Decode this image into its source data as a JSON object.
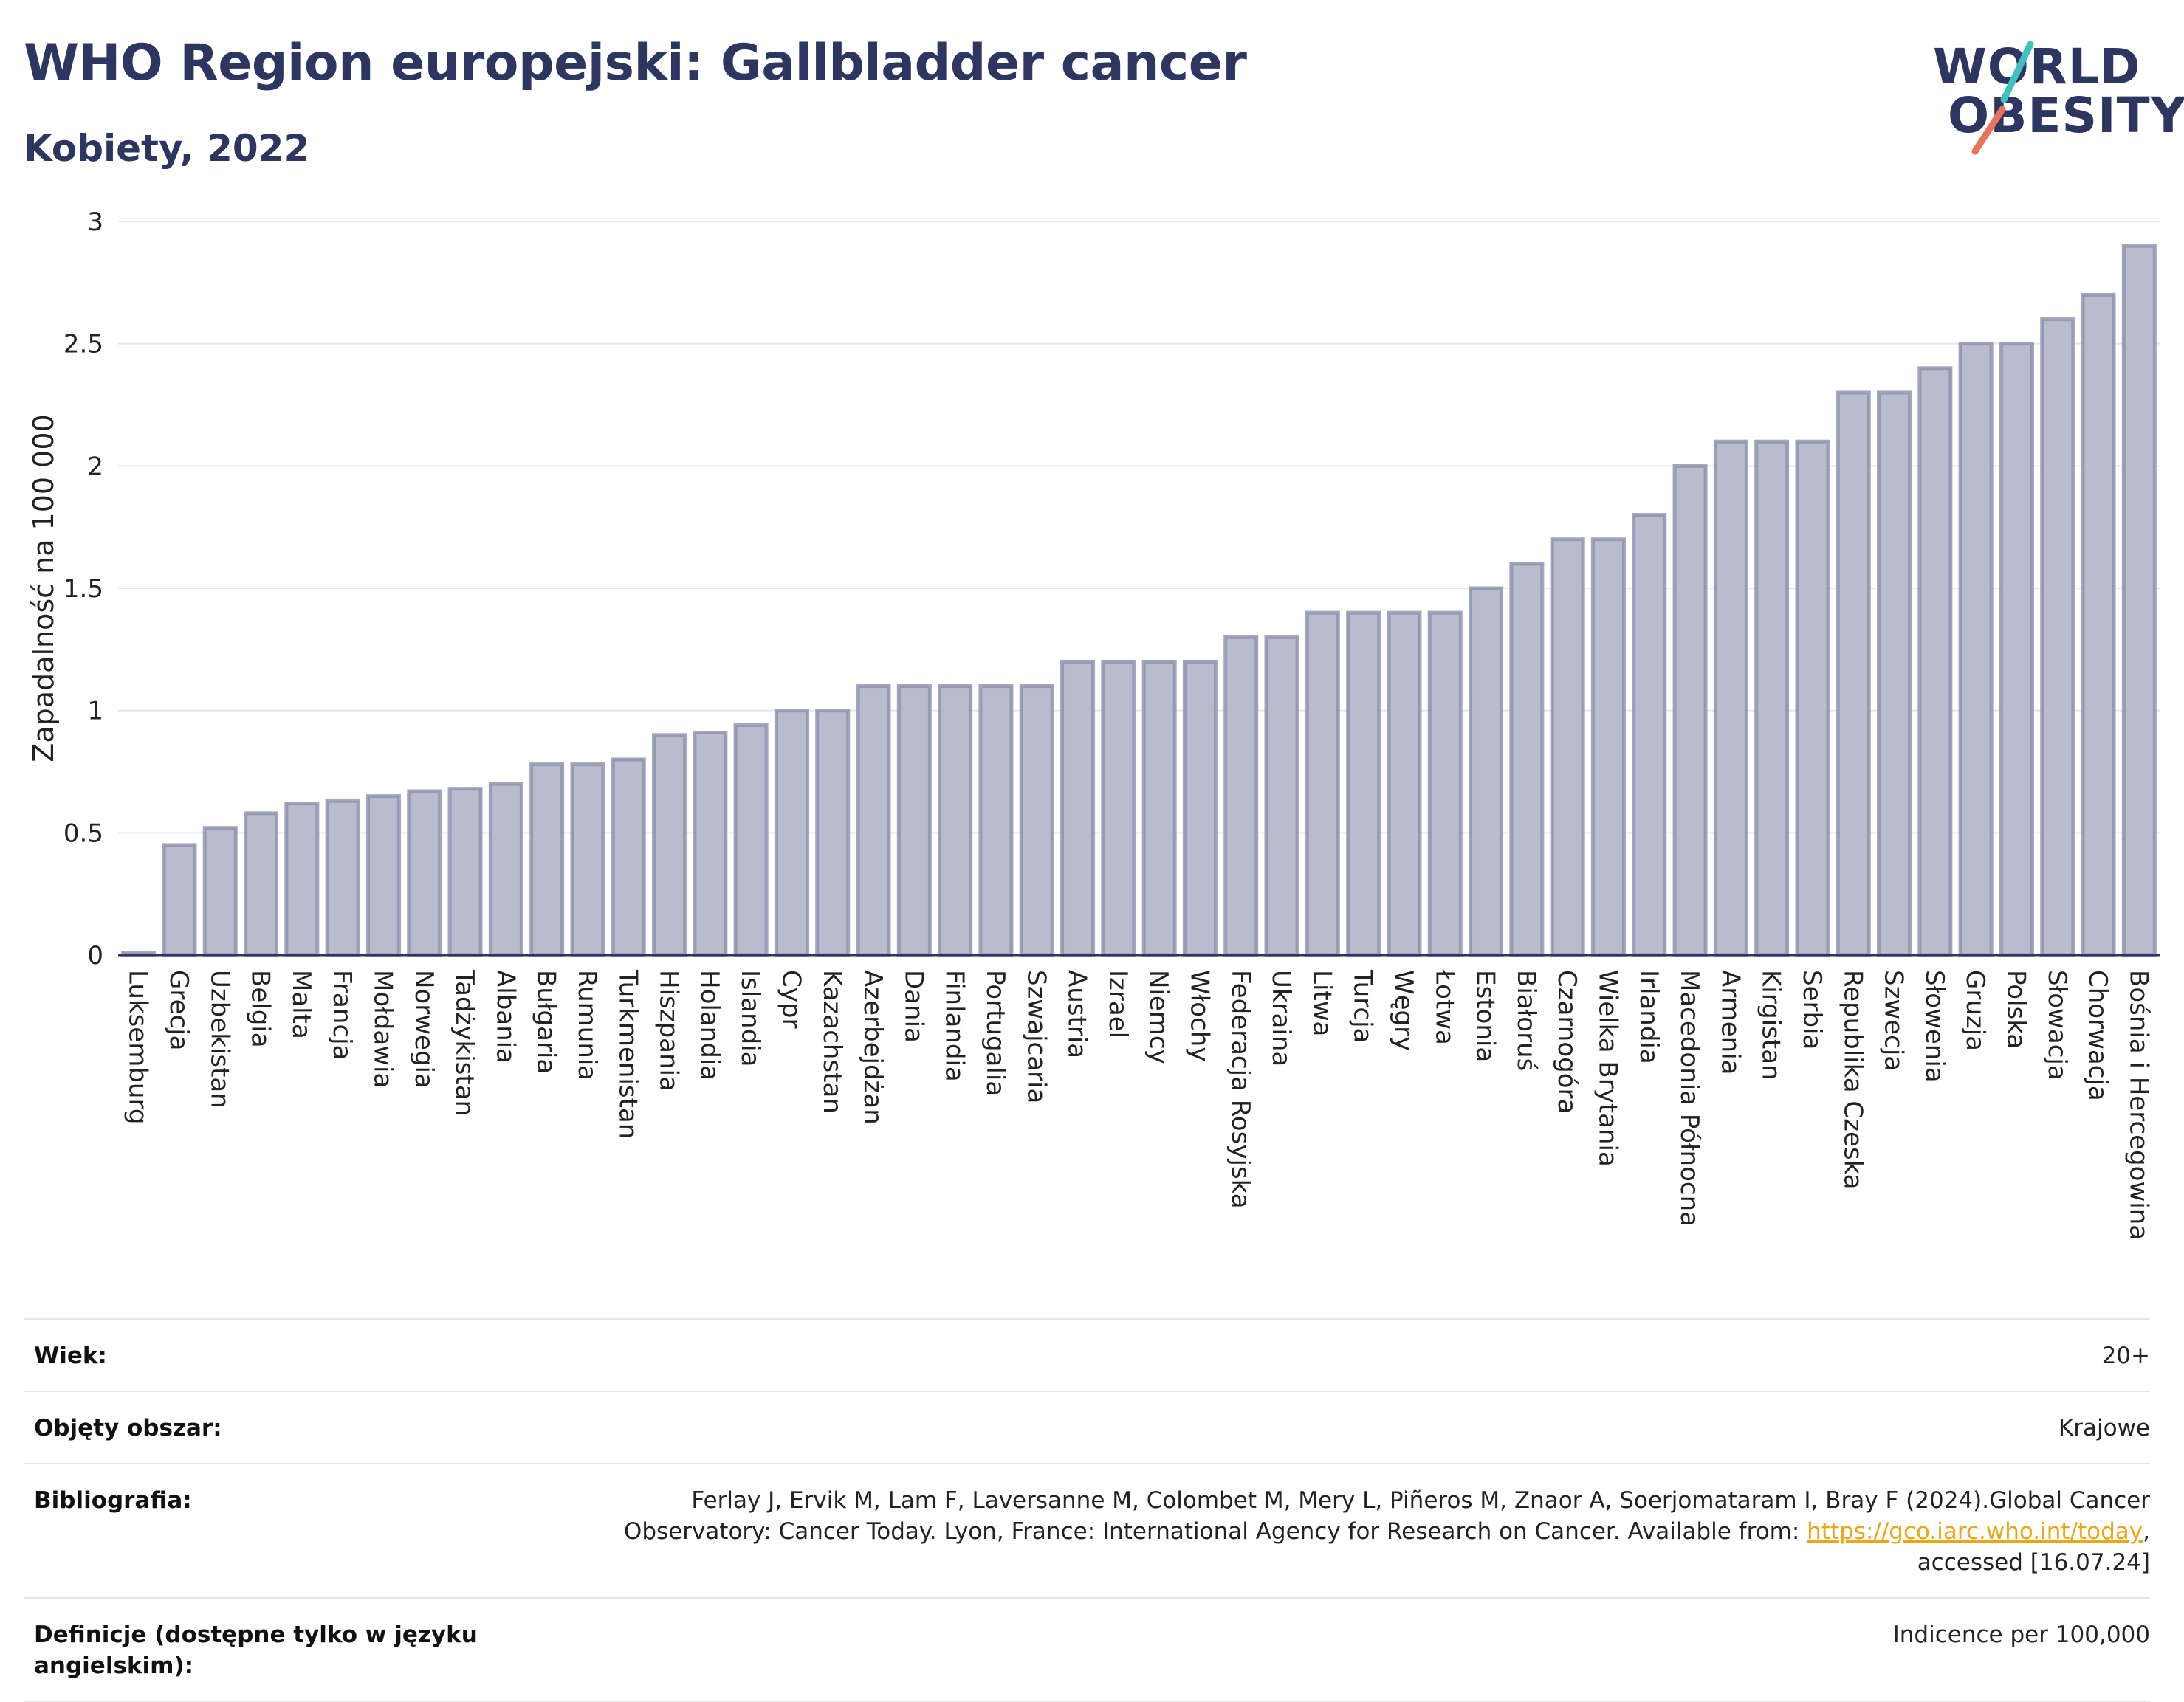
{
  "header": {
    "title": "WHO Region europejski: Gallbladder cancer",
    "subtitle": "Kobiety, 2022"
  },
  "logo": {
    "line1": "WORLD",
    "line2": "OBESITY",
    "slash_colors": [
      "#3fc1c0",
      "#e8735a"
    ]
  },
  "colors": {
    "bar_fill": "#b8bccc",
    "bar_stroke": "#8a90ab",
    "axis": "#2d3561",
    "grid": "#e6e6e6"
  },
  "chart_data": {
    "type": "bar",
    "title": "",
    "ylabel": "Zapadalność na 100 000",
    "ylim": [
      0,
      3
    ],
    "yticks": [
      0,
      0.5,
      1,
      1.5,
      2,
      2.5,
      3
    ],
    "ytick_labels": [
      "0",
      "0.5",
      "1",
      "1.5",
      "2",
      "2.5",
      "3"
    ],
    "grid": true,
    "categories": [
      "Luksemburg",
      "Grecja",
      "Uzbekistan",
      "Belgia",
      "Malta",
      "Francja",
      "Mołdawia",
      "Norwegia",
      "Tadżykistan",
      "Albania",
      "Bułgaria",
      "Rumunia",
      "Turkmenistan",
      "Hiszpania",
      "Holandia",
      "Islandia",
      "Cypr",
      "Kazachstan",
      "Azerbejdżan",
      "Dania",
      "Finlandia",
      "Portugalia",
      "Szwajcaria",
      "Austria",
      "Izrael",
      "Niemcy",
      "Włochy",
      "Federacja Rosyjska",
      "Ukraina",
      "Litwa",
      "Turcja",
      "Węgry",
      "Łotwa",
      "Estonia",
      "Białoruś",
      "Czarnogóra",
      "Wielka Brytania",
      "Irlandia",
      "Macedonia Północna",
      "Armenia",
      "Kirgistan",
      "Serbia",
      "Republika Czeska",
      "Szwecja",
      "Słowenia",
      "Gruzja",
      "Polska",
      "Słowacja",
      "Chorwacja",
      "Bośnia i Hercegowina"
    ],
    "values": [
      0.01,
      0.45,
      0.52,
      0.58,
      0.62,
      0.63,
      0.65,
      0.67,
      0.68,
      0.7,
      0.78,
      0.78,
      0.8,
      0.9,
      0.91,
      0.94,
      1.0,
      1.0,
      1.1,
      1.1,
      1.1,
      1.1,
      1.1,
      1.2,
      1.2,
      1.2,
      1.2,
      1.3,
      1.3,
      1.4,
      1.4,
      1.4,
      1.4,
      1.5,
      1.6,
      1.7,
      1.7,
      1.8,
      2.0,
      2.1,
      2.1,
      2.1,
      2.3,
      2.3,
      2.4,
      2.5,
      2.5,
      2.6,
      2.7,
      2.9
    ]
  },
  "info": {
    "age_label": "Wiek:",
    "age_value": "20+",
    "coverage_label": "Objęty obszar:",
    "coverage_value": "Krajowe",
    "biblio_label": "Bibliografia:",
    "biblio_line1": "Ferlay J, Ervik M, Lam F, Laversanne M, Colombet M, Mery L, Piñeros M, Znaor A, Soerjomataram I, Bray F (2024).Global Cancer",
    "biblio_line2": "Observatory: Cancer Today. Lyon, France: International Agency for Research on Cancer. Available from:",
    "biblio_link": "https://gco.iarc.who.int/today",
    "biblio_line3": "accessed [16.07.24]",
    "def_label": "Definicje (dostępne tylko w języku angielskim):",
    "def_value": "Indicence per 100,000"
  }
}
